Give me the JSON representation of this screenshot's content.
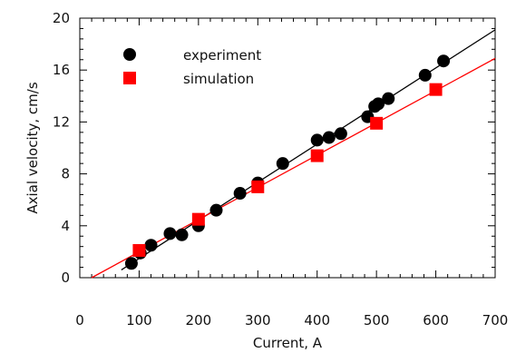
{
  "chart_data": {
    "type": "scatter",
    "title": "",
    "xlabel": "Current, A",
    "ylabel": "Axial velocity, cm/s",
    "xlim": [
      0,
      700
    ],
    "ylim": [
      0,
      20
    ],
    "x_ticks": [
      0,
      100,
      200,
      300,
      400,
      500,
      600,
      700
    ],
    "y_ticks": [
      0,
      4,
      8,
      12,
      16,
      20
    ],
    "x_tick_labels": [
      "0",
      "100",
      "200",
      "300",
      "400",
      "500",
      "600",
      "700"
    ],
    "y_tick_labels": [
      "0",
      "4",
      "8",
      "12",
      "16",
      "20"
    ],
    "grid": false,
    "legend_position": "top-left",
    "series": [
      {
        "name": "experiment",
        "marker": "circle",
        "color": "#000000",
        "x": [
          87,
          102,
          120,
          152,
          172,
          200,
          230,
          270,
          300,
          342,
          400,
          420,
          440,
          485,
          497,
          503,
          520,
          582,
          613
        ],
        "y": [
          1.1,
          1.9,
          2.5,
          3.4,
          3.3,
          4.0,
          5.2,
          6.5,
          7.3,
          8.8,
          10.6,
          10.8,
          11.1,
          12.4,
          13.2,
          13.4,
          13.8,
          15.6,
          16.7
        ]
      },
      {
        "name": "simulation",
        "marker": "square",
        "color": "#ff0000",
        "x": [
          100,
          200,
          300,
          400,
          500,
          600
        ],
        "y": [
          2.1,
          4.5,
          7.0,
          9.4,
          11.9,
          14.5
        ]
      }
    ],
    "fit_lines": [
      {
        "series": "experiment",
        "color": "#000000",
        "x": [
          70,
          700
        ],
        "y": [
          0.6,
          19.1
        ]
      },
      {
        "series": "simulation",
        "color": "#ff0000",
        "x": [
          20,
          700
        ],
        "y": [
          0.0,
          16.9
        ]
      }
    ]
  }
}
